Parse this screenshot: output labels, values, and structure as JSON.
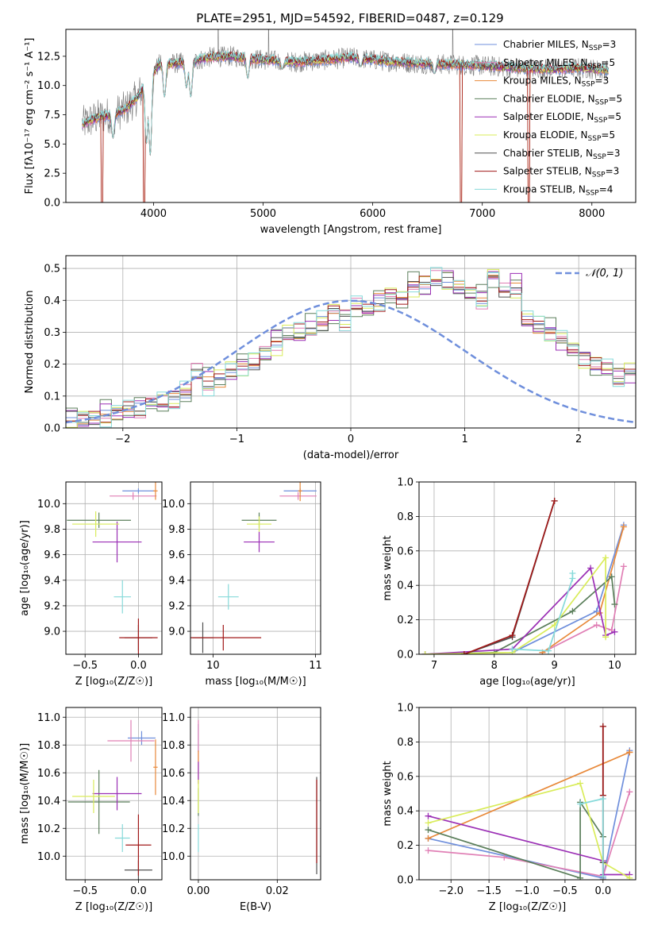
{
  "figure": {
    "title": "PLATE=2951, MJD=54592, FIBERID=0487, z=0.129"
  },
  "colors": {
    "chabrier_miles": "#6f8fdc",
    "salpeter_miles": "#e07fb5",
    "kroupa_miles": "#e8893a",
    "chabrier_elodie": "#5b7f5b",
    "salpeter_elodie": "#9b2fb5",
    "kroupa_elodie": "#d9ec5a",
    "chabrier_stelib": "#505050",
    "salpeter_stelib": "#a01818",
    "kroupa_stelib": "#86dada",
    "normal": "#6f8fdc",
    "grid": "#b0b0b0"
  },
  "chart_data": [
    {
      "id": "spectrum",
      "type": "line",
      "title": "PLATE=2951, MJD=54592, FIBERID=0487, z=0.129",
      "xlabel": "wavelength [Angstrom, rest frame]",
      "ylabel": "Flux [fλ10⁻¹⁷ erg cm⁻² s⁻¹ A⁻¹]",
      "xlim": [
        3200,
        8400
      ],
      "ylim": [
        0,
        14.8
      ],
      "xticks": [
        4000,
        5000,
        6000,
        7000,
        8000
      ],
      "yticks": [
        0.0,
        2.5,
        5.0,
        7.5,
        10.0,
        12.5
      ],
      "grid": false,
      "legend_position": "right",
      "legend": [
        "Chabrier MILES, N_SSP=3",
        "Salpeter MILES, N_SSP=5",
        "Kroupa MILES, N_SSP=3",
        "Chabrier ELODIE, N_SSP=5",
        "Salpeter ELODIE, N_SSP=5",
        "Kroupa ELODIE, N_SSP=5",
        "Chabrier STELIB, N_SSP=3",
        "Salpeter STELIB, N_SSP=3",
        "Kroupa STELIB, N_SSP=4"
      ],
      "continuum": [
        [
          3350,
          6.7
        ],
        [
          3500,
          7.3
        ],
        [
          3650,
          7.6
        ],
        [
          3750,
          8.0
        ],
        [
          3850,
          9.0
        ],
        [
          3950,
          10.5
        ],
        [
          4050,
          11.8
        ],
        [
          4200,
          11.9
        ],
        [
          4350,
          12.0
        ],
        [
          4500,
          12.4
        ],
        [
          4700,
          12.5
        ],
        [
          5000,
          12.2
        ],
        [
          5300,
          12.0
        ],
        [
          5600,
          12.2
        ],
        [
          5800,
          12.4
        ],
        [
          6100,
          12.1
        ],
        [
          6400,
          11.9
        ],
        [
          6700,
          11.8
        ],
        [
          7000,
          11.7
        ],
        [
          7300,
          11.5
        ],
        [
          7600,
          11.4
        ],
        [
          7900,
          11.5
        ],
        [
          8150,
          11.3
        ]
      ],
      "noisy_observed_x_range": [
        3350,
        8150
      ],
      "absorption_dips": [
        [
          3550,
          0.0
        ],
        [
          3630,
          5.5
        ],
        [
          3935,
          5.0
        ],
        [
          3970,
          4.0
        ],
        [
          4100,
          9.0
        ],
        [
          4300,
          9.8
        ],
        [
          4340,
          9.0
        ],
        [
          4860,
          10.6
        ],
        [
          5175,
          11.4
        ],
        [
          5890,
          11.6
        ],
        [
          6563,
          11.0
        ]
      ],
      "model_drops_to_zero_x": [
        3530,
        3915,
        6805,
        7425
      ],
      "spikes_above_top_x": [
        4590,
        5050,
        6730
      ]
    },
    {
      "id": "residuals",
      "type": "histogram",
      "xlabel": "(data-model)/error",
      "ylabel": "Normed distribution",
      "xlim": [
        -2.5,
        2.5
      ],
      "ylim": [
        0,
        0.54
      ],
      "xticks": [
        -2,
        -1,
        0,
        1,
        2
      ],
      "yticks": [
        0.0,
        0.1,
        0.2,
        0.3,
        0.4,
        0.5
      ],
      "grid": true,
      "legend_position": "top-right",
      "legend": [
        "𝒩(0, 1)"
      ],
      "bin_edges_from": -2.5,
      "bin_width": 0.1,
      "envelope": [
        0.03,
        0.028,
        0.035,
        0.04,
        0.05,
        0.055,
        0.06,
        0.07,
        0.085,
        0.09,
        0.11,
        0.18,
        0.14,
        0.15,
        0.18,
        0.19,
        0.2,
        0.24,
        0.27,
        0.29,
        0.3,
        0.32,
        0.33,
        0.36,
        0.34,
        0.38,
        0.37,
        0.39,
        0.42,
        0.4,
        0.44,
        0.45,
        0.47,
        0.46,
        0.45,
        0.43,
        0.41,
        0.47,
        0.43,
        0.45,
        0.34,
        0.32,
        0.3,
        0.27,
        0.25,
        0.22,
        0.2,
        0.19,
        0.16,
        0.17,
        0.14,
        0.12,
        0.1,
        0.09,
        0.08,
        0.07,
        0.06,
        0.05,
        0.04,
        0.03
      ],
      "series_offsets": [
        0.0,
        -0.018,
        0.012,
        0.03,
        0.02,
        -0.025,
        0.008,
        -0.012,
        -0.03
      ],
      "normal_curve": {
        "mean": 0,
        "sigma": 1,
        "label": "𝒩(0, 1)"
      }
    },
    {
      "id": "age_vs_Z",
      "type": "scatter",
      "xlabel": "Z [log₁₀(Z/Z☉)]",
      "ylabel": "age  [log₁₀(age/yr)]",
      "xlim": [
        -0.68,
        0.22
      ],
      "ylim": [
        8.82,
        10.17
      ],
      "xticks": [
        -0.5,
        0.0
      ],
      "yticks": [
        9.0,
        9.2,
        9.4,
        9.6,
        9.8,
        10.0
      ],
      "grid": true,
      "points": [
        {
          "series": "chabrier_miles",
          "x": 0.0,
          "y": 10.1,
          "xerr": 0.15,
          "yerr": 0.02
        },
        {
          "series": "salpeter_miles",
          "x": -0.05,
          "y": 10.06,
          "xerr": 0.22,
          "yerr": 0.03
        },
        {
          "series": "kroupa_miles",
          "x": 0.16,
          "y": 10.1,
          "xerr": 0.02,
          "yerr": 0.07
        },
        {
          "series": "chabrier_elodie",
          "x": -0.37,
          "y": 9.87,
          "xerr": 0.3,
          "yerr": 0.06
        },
        {
          "series": "salpeter_elodie",
          "x": -0.2,
          "y": 9.7,
          "xerr": 0.23,
          "yerr": 0.16
        },
        {
          "series": "kroupa_elodie",
          "x": -0.4,
          "y": 9.84,
          "xerr": 0.22,
          "yerr": 0.1
        },
        {
          "series": "chabrier_stelib",
          "x": 0.0,
          "y": 8.95,
          "xerr": 0.13,
          "yerr": 0.1
        },
        {
          "series": "salpeter_stelib",
          "x": 0.0,
          "y": 8.95,
          "xerr": 0.18,
          "yerr": 0.15
        },
        {
          "series": "kroupa_stelib",
          "x": -0.15,
          "y": 9.27,
          "xerr": 0.08,
          "yerr": 0.13
        }
      ]
    },
    {
      "id": "age_vs_mass",
      "type": "scatter",
      "xlabel": "mass [log₁₀(M/M☉)]",
      "ylabel": "",
      "xlim": [
        9.78,
        11.05
      ],
      "ylim": [
        8.82,
        10.17
      ],
      "xticks": [
        10,
        11
      ],
      "yticks": [
        9.0,
        9.2,
        9.4,
        9.6,
        9.8,
        10.0
      ],
      "grid": true,
      "points": [
        {
          "series": "chabrier_miles",
          "x": 10.85,
          "y": 10.1,
          "xerr": 0.16,
          "yerr": 0.02
        },
        {
          "series": "salpeter_miles",
          "x": 10.83,
          "y": 10.06,
          "xerr": 0.18,
          "yerr": 0.03
        },
        {
          "series": "kroupa_miles",
          "x": 10.85,
          "y": 10.1,
          "xerr": 0.02,
          "yerr": 0.08
        },
        {
          "series": "chabrier_elodie",
          "x": 10.45,
          "y": 9.87,
          "xerr": 0.17,
          "yerr": 0.06
        },
        {
          "series": "salpeter_elodie",
          "x": 10.45,
          "y": 9.7,
          "xerr": 0.15,
          "yerr": 0.08
        },
        {
          "series": "kroupa_elodie",
          "x": 10.45,
          "y": 9.84,
          "xerr": 0.12,
          "yerr": 0.06
        },
        {
          "series": "chabrier_stelib",
          "x": 9.9,
          "y": 8.95,
          "xerr": 0.1,
          "yerr": 0.12
        },
        {
          "series": "salpeter_stelib",
          "x": 10.1,
          "y": 8.95,
          "xerr": 0.37,
          "yerr": 0.1
        },
        {
          "series": "kroupa_stelib",
          "x": 10.15,
          "y": 9.27,
          "xerr": 0.1,
          "yerr": 0.1
        }
      ]
    },
    {
      "id": "weight_vs_age",
      "type": "line",
      "xlabel": "age  [log₁₀(age/yr)]",
      "ylabel": "mass weight",
      "xlim": [
        6.75,
        10.35
      ],
      "ylim": [
        0,
        1
      ],
      "xticks": [
        7,
        8,
        9,
        10
      ],
      "yticks": [
        0.0,
        0.2,
        0.4,
        0.6,
        0.8,
        1.0
      ],
      "grid": true,
      "series": [
        {
          "series": "chabrier_miles",
          "x": [
            8.3,
            9.7,
            10.15
          ],
          "y": [
            0.01,
            0.25,
            0.75
          ]
        },
        {
          "series": "salpeter_miles",
          "x": [
            8.8,
            9.7,
            9.95,
            10.15
          ],
          "y": [
            0.01,
            0.17,
            0.14,
            0.51
          ]
        },
        {
          "series": "kroupa_miles",
          "x": [
            8.8,
            9.75,
            10.15
          ],
          "y": [
            0.01,
            0.24,
            0.74
          ]
        },
        {
          "series": "chabrier_elodie",
          "x": [
            6.85,
            8.0,
            9.3,
            9.95,
            10.0
          ],
          "y": [
            0.0,
            0.01,
            0.25,
            0.45,
            0.29
          ]
        },
        {
          "series": "salpeter_elodie",
          "x": [
            6.85,
            8.3,
            9.6,
            9.85,
            10.0
          ],
          "y": [
            0.0,
            0.03,
            0.5,
            0.11,
            0.13
          ]
        },
        {
          "series": "kroupa_elodie",
          "x": [
            6.85,
            8.3,
            9.0,
            9.85,
            9.85
          ],
          "y": [
            0.0,
            0.01,
            0.17,
            0.56,
            0.1
          ]
        },
        {
          "series": "chabrier_stelib",
          "x": [
            7.5,
            8.3,
            9.0
          ],
          "y": [
            0.0,
            0.1,
            0.89
          ]
        },
        {
          "series": "salpeter_stelib",
          "x": [
            7.5,
            8.3,
            9.0
          ],
          "y": [
            0.0,
            0.11,
            0.89
          ]
        },
        {
          "series": "kroupa_stelib",
          "x": [
            8.3,
            8.9,
            9.3,
            9.3
          ],
          "y": [
            0.03,
            0.02,
            0.44,
            0.47
          ]
        }
      ]
    },
    {
      "id": "mass_vs_Z",
      "type": "scatter",
      "xlabel": "Z [log₁₀(Z/Z☉)]",
      "ylabel": "mass [log₁₀(M/M☉)]",
      "xlim": [
        -0.68,
        0.22
      ],
      "ylim": [
        9.83,
        11.07
      ],
      "xticks": [
        -0.5,
        0.0
      ],
      "yticks": [
        10.0,
        10.2,
        10.4,
        10.6,
        10.8,
        11.0
      ],
      "grid": true,
      "points": [
        {
          "series": "chabrier_miles",
          "x": 0.03,
          "y": 10.85,
          "xerr": 0.13,
          "yerr": 0.05
        },
        {
          "series": "salpeter_miles",
          "x": -0.07,
          "y": 10.83,
          "xerr": 0.22,
          "yerr": 0.15
        },
        {
          "series": "kroupa_miles",
          "x": 0.16,
          "y": 10.64,
          "xerr": 0.02,
          "yerr": 0.2
        },
        {
          "series": "chabrier_elodie",
          "x": -0.37,
          "y": 10.39,
          "xerr": 0.29,
          "yerr": 0.23
        },
        {
          "series": "salpeter_elodie",
          "x": -0.2,
          "y": 10.45,
          "xerr": 0.23,
          "yerr": 0.12
        },
        {
          "series": "kroupa_elodie",
          "x": -0.42,
          "y": 10.43,
          "xerr": 0.2,
          "yerr": 0.12
        },
        {
          "series": "chabrier_stelib",
          "x": 0.0,
          "y": 9.9,
          "xerr": 0.13,
          "yerr": 0.07
        },
        {
          "series": "salpeter_stelib",
          "x": 0.0,
          "y": 10.08,
          "xerr": 0.12,
          "yerr": 0.22
        },
        {
          "series": "kroupa_stelib",
          "x": -0.15,
          "y": 10.13,
          "xerr": 0.07,
          "yerr": 0.1
        }
      ]
    },
    {
      "id": "mass_vs_EBV",
      "type": "scatter",
      "xlabel": "E(B-V)",
      "ylabel": "",
      "xlim": [
        -0.002,
        0.031
      ],
      "ylim": [
        9.83,
        11.07
      ],
      "xticks": [
        0.0,
        0.02
      ],
      "yticks": [
        10.0,
        10.2,
        10.4,
        10.6,
        10.8,
        11.0
      ],
      "grid": true,
      "points": [
        {
          "series": "chabrier_miles",
          "x": 0.0,
          "y": 10.85,
          "xerr": 0.0,
          "yerr": 0.1
        },
        {
          "series": "salpeter_miles",
          "x": 0.0,
          "y": 10.83,
          "xerr": 0.0,
          "yerr": 0.15
        },
        {
          "series": "kroupa_miles",
          "x": 0.0,
          "y": 10.64,
          "xerr": 0.0,
          "yerr": 0.12
        },
        {
          "series": "chabrier_elodie",
          "x": 0.0,
          "y": 10.39,
          "xerr": 0.0,
          "yerr": 0.1
        },
        {
          "series": "salpeter_elodie",
          "x": 0.0,
          "y": 10.6,
          "xerr": 0.0,
          "yerr": 0.08
        },
        {
          "series": "kroupa_elodie",
          "x": 0.0,
          "y": 10.43,
          "xerr": 0.0,
          "yerr": 0.12
        },
        {
          "series": "chabrier_stelib",
          "x": 0.03,
          "y": 10.22,
          "xerr": 0.0,
          "yerr": 0.35
        },
        {
          "series": "salpeter_stelib",
          "x": 0.03,
          "y": 10.25,
          "xerr": 0.0,
          "yerr": 0.3
        },
        {
          "series": "kroupa_stelib",
          "x": 0.0,
          "y": 10.13,
          "xerr": 0.0,
          "yerr": 0.1
        }
      ]
    },
    {
      "id": "weight_vs_Z",
      "type": "line",
      "xlabel": "Z [log₁₀(Z/Z☉)]",
      "ylabel": "mass weight",
      "xlim": [
        -2.42,
        0.43
      ],
      "ylim": [
        0,
        1
      ],
      "xticks": [
        -2.0,
        -1.5,
        -1.0,
        -0.5,
        0.0
      ],
      "yticks": [
        0.0,
        0.2,
        0.4,
        0.6,
        0.8,
        1.0
      ],
      "grid": true,
      "series": [
        {
          "series": "chabrier_miles",
          "x": [
            -2.3,
            0.0,
            0.35
          ],
          "y": [
            0.24,
            0.01,
            0.75
          ]
        },
        {
          "series": "salpeter_miles",
          "x": [
            -2.3,
            -1.3,
            0.0,
            0.35
          ],
          "y": [
            0.17,
            0.13,
            0.02,
            0.51
          ]
        },
        {
          "series": "kroupa_miles",
          "x": [
            -2.3,
            0.35,
            0.35
          ],
          "y": [
            0.24,
            0.74,
            0.74
          ]
        },
        {
          "series": "chabrier_elodie",
          "x": [
            -2.3,
            -0.3,
            -0.3,
            0.0,
            0.0
          ],
          "y": [
            0.29,
            0.01,
            0.45,
            0.25,
            0.25
          ]
        },
        {
          "series": "salpeter_elodie",
          "x": [
            -2.3,
            0.0,
            0.0,
            0.35
          ],
          "y": [
            0.37,
            0.11,
            0.03,
            0.03
          ]
        },
        {
          "series": "kroupa_elodie",
          "x": [
            -2.3,
            -0.3,
            0.0,
            0.35
          ],
          "y": [
            0.33,
            0.56,
            0.1,
            0.01
          ]
        },
        {
          "series": "chabrier_stelib",
          "x": [
            0.0,
            0.0,
            0.0
          ],
          "y": [
            0.0,
            0.1,
            0.89
          ]
        },
        {
          "series": "salpeter_stelib",
          "x": [
            0.0,
            0.0,
            0.0
          ],
          "y": [
            0.0,
            0.49,
            0.89
          ]
        },
        {
          "series": "kroupa_stelib",
          "x": [
            -0.3,
            0.0,
            0.0
          ],
          "y": [
            0.44,
            0.47,
            0.02
          ]
        }
      ]
    }
  ]
}
